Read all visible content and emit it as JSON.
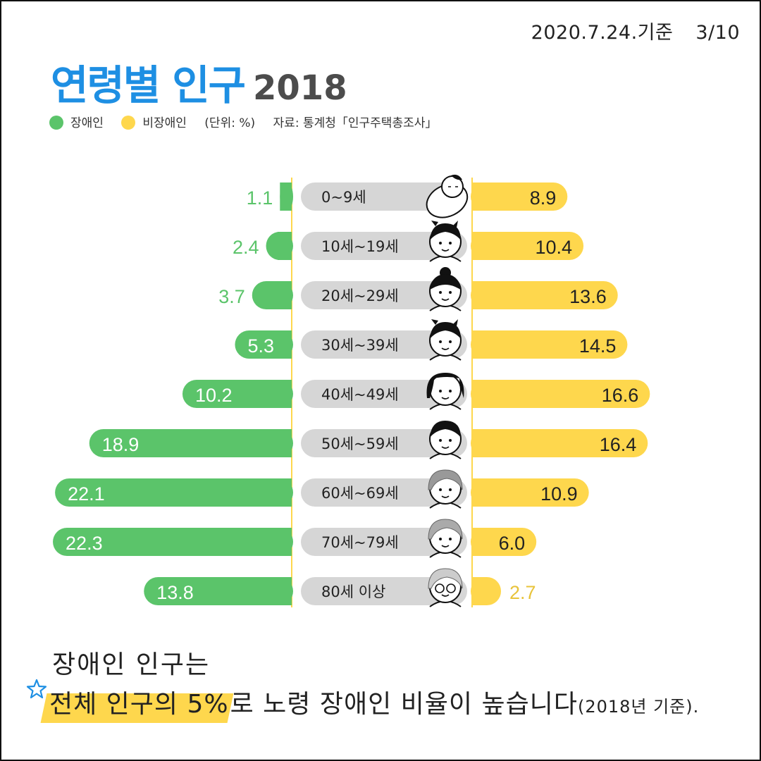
{
  "header": {
    "date": "2020.7.24.기준",
    "page": "3/10"
  },
  "title": {
    "main": "연령별 인구",
    "year": "2018"
  },
  "legend": {
    "disabled_label": "장애인",
    "nondisabled_label": "비장애인",
    "unit": "(단위: %)",
    "source": "자료: 통계청「인구주택총조사」"
  },
  "colors": {
    "disabled": "#5bc46a",
    "nondisabled": "#fed74d",
    "title": "#1e8fe3",
    "label_pill": "#d6d6d6"
  },
  "chart_data": {
    "type": "bar",
    "categories": [
      "0~9세",
      "10세~19세",
      "20세~29세",
      "30세~39세",
      "40세~49세",
      "50세~59세",
      "60세~69세",
      "70세~79세",
      "80세 이상"
    ],
    "series": [
      {
        "name": "장애인",
        "values": [
          1.1,
          2.4,
          3.7,
          5.3,
          10.2,
          18.9,
          22.1,
          22.3,
          13.8
        ],
        "labels": [
          "1.1",
          "2.4",
          "3.7",
          "5.3",
          "10.2",
          "18.9",
          "22.1",
          "22.3",
          "13.8"
        ]
      },
      {
        "name": "비장애인",
        "values": [
          8.9,
          10.4,
          13.6,
          14.5,
          16.6,
          16.4,
          10.9,
          6.0,
          2.7
        ],
        "labels": [
          "8.9",
          "10.4",
          "13.6",
          "14.5",
          "16.6",
          "16.4",
          "10.9",
          "6.0",
          "2.7"
        ]
      }
    ],
    "icons": [
      "baby-icon",
      "teen-icon",
      "twenties-icon",
      "thirties-icon",
      "forties-icon",
      "fifties-icon",
      "sixties-icon",
      "seventies-icon",
      "elderly-icon"
    ]
  },
  "footer": {
    "line1": "장애인 인구는",
    "highlight": "전체 인구의 5%",
    "rest": "로 노령 장애인 비율이 높습니다",
    "note": "(2018년 기준)."
  }
}
